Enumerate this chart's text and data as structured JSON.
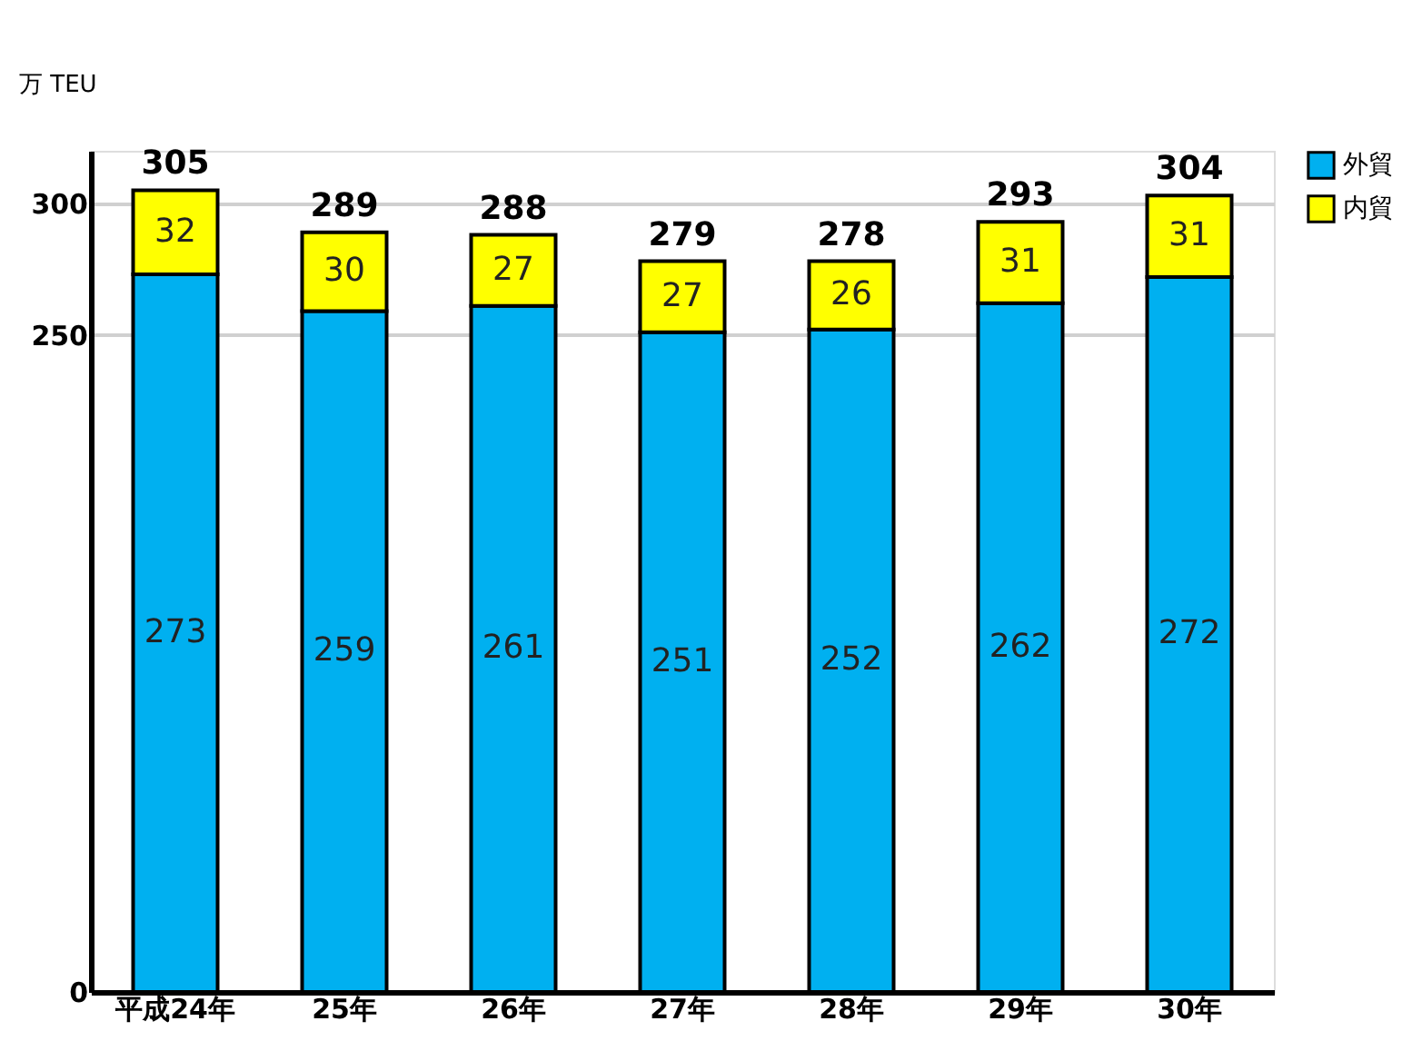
{
  "chart_data": {
    "type": "bar",
    "stacked": true,
    "ylabel": "万 TEU",
    "categories": [
      "平成24年",
      "25年",
      "26年",
      "27年",
      "28年",
      "29年",
      "30年"
    ],
    "series": [
      {
        "name": "外貿",
        "color": "#00b0f0",
        "values": [
          273,
          259,
          261,
          251,
          252,
          262,
          272
        ]
      },
      {
        "name": "内貿",
        "color": "#ffff00",
        "values": [
          32,
          30,
          27,
          27,
          26,
          31,
          31
        ]
      }
    ],
    "totals": [
      "305",
      "289",
      "288",
      "279",
      "278",
      "293",
      "304"
    ],
    "data_labels": true,
    "ylim": [
      0,
      320
    ],
    "yticks": [
      0,
      250,
      300
    ],
    "grid": "y",
    "legend": "right"
  }
}
